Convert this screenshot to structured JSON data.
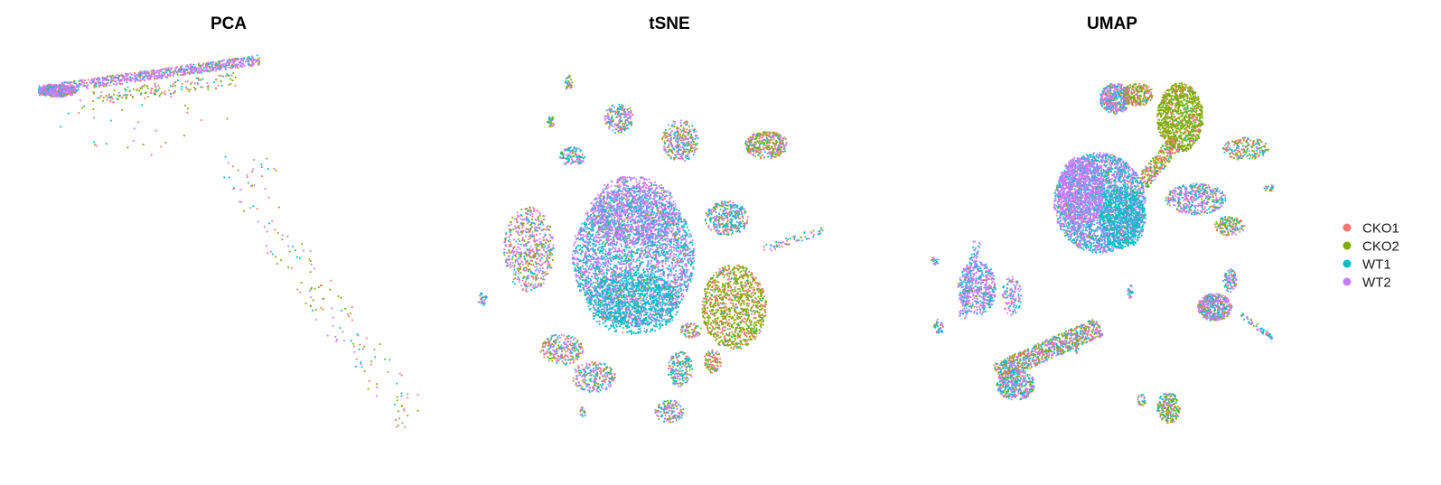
{
  "colors": {
    "CKO1": "#F8766D",
    "CKO2": "#7CAE00",
    "WT1": "#00BFC4",
    "WT2": "#C77CFF"
  },
  "legend": {
    "placement": "right",
    "entries": [
      "CKO1",
      "CKO2",
      "WT1",
      "WT2"
    ]
  },
  "chart_data": [
    {
      "type": "scatter",
      "title": "PCA",
      "xlabel": "",
      "ylabel": "",
      "axes_visible": false,
      "grid": false,
      "xlim": [
        0,
        100
      ],
      "ylim": [
        0,
        100
      ],
      "series_names": [
        "CKO1",
        "CKO2",
        "WT1",
        "WT2"
      ],
      "density_regions": [
        {
          "shape": "band",
          "x1": 1,
          "y1": 91,
          "x2": 58,
          "y2": 99,
          "width": 2.5,
          "n": 900,
          "mix": [
            0.08,
            0.08,
            0.14,
            0.7
          ]
        },
        {
          "shape": "ellipse",
          "cx": 6,
          "cy": 91,
          "rx": 5,
          "ry": 1.6,
          "n": 450,
          "mix": [
            0.06,
            0.06,
            0.18,
            0.7
          ]
        },
        {
          "shape": "band",
          "x1": 15,
          "y1": 89,
          "x2": 52,
          "y2": 94,
          "width": 3.5,
          "n": 160,
          "mix": [
            0.25,
            0.45,
            0.15,
            0.15
          ]
        },
        {
          "shape": "ellipse",
          "cx": 28,
          "cy": 83,
          "rx": 22,
          "ry": 9,
          "n": 35,
          "mix": [
            0.3,
            0.3,
            0.2,
            0.2
          ]
        },
        {
          "shape": "ellipse",
          "cx": 55,
          "cy": 70,
          "rx": 8,
          "ry": 6,
          "n": 25,
          "mix": [
            0.3,
            0.3,
            0.2,
            0.2
          ]
        },
        {
          "shape": "band",
          "x1": 55,
          "y1": 64,
          "x2": 98,
          "y2": 5,
          "width": 10,
          "n": 140,
          "mix": [
            0.3,
            0.35,
            0.15,
            0.2
          ]
        }
      ]
    },
    {
      "type": "scatter",
      "title": "tSNE",
      "xlabel": "",
      "ylabel": "",
      "axes_visible": false,
      "grid": false,
      "xlim": [
        0,
        100
      ],
      "ylim": [
        0,
        100
      ],
      "series_names": [
        "CKO1",
        "CKO2",
        "WT1",
        "WT2"
      ],
      "density_regions": [
        {
          "shape": "ellipse",
          "cx": 44,
          "cy": 48,
          "rx": 17,
          "ry": 18,
          "n": 3600,
          "mix": [
            0.02,
            0.03,
            0.47,
            0.48
          ]
        },
        {
          "shape": "ellipse",
          "cx": 44,
          "cy": 60,
          "rx": 12,
          "ry": 9,
          "n": 900,
          "mix": [
            0.02,
            0.03,
            0.15,
            0.8
          ]
        },
        {
          "shape": "ellipse",
          "cx": 44,
          "cy": 36,
          "rx": 13,
          "ry": 8,
          "n": 800,
          "mix": [
            0.02,
            0.03,
            0.8,
            0.15
          ]
        },
        {
          "shape": "ellipse",
          "cx": 72,
          "cy": 35,
          "rx": 9,
          "ry": 11,
          "n": 1100,
          "mix": [
            0.3,
            0.6,
            0.05,
            0.05
          ]
        },
        {
          "shape": "ellipse",
          "cx": 15,
          "cy": 50,
          "rx": 7,
          "ry": 11,
          "n": 600,
          "mix": [
            0.22,
            0.22,
            0.16,
            0.4
          ]
        },
        {
          "shape": "ellipse",
          "cx": 70,
          "cy": 58,
          "rx": 6,
          "ry": 4.5,
          "n": 350,
          "mix": [
            0.15,
            0.15,
            0.45,
            0.25
          ]
        },
        {
          "shape": "ellipse",
          "cx": 81,
          "cy": 77,
          "rx": 6,
          "ry": 3.5,
          "n": 350,
          "mix": [
            0.2,
            0.45,
            0.1,
            0.25
          ]
        },
        {
          "shape": "ellipse",
          "cx": 57,
          "cy": 78,
          "rx": 5,
          "ry": 5.5,
          "n": 300,
          "mix": [
            0.2,
            0.2,
            0.25,
            0.35
          ]
        },
        {
          "shape": "ellipse",
          "cx": 40,
          "cy": 84,
          "rx": 4,
          "ry": 4,
          "n": 200,
          "mix": [
            0.15,
            0.15,
            0.3,
            0.4
          ]
        },
        {
          "shape": "ellipse",
          "cx": 27,
          "cy": 74,
          "rx": 3.5,
          "ry": 2.5,
          "n": 120,
          "mix": [
            0.1,
            0.1,
            0.4,
            0.4
          ]
        },
        {
          "shape": "ellipse",
          "cx": 24,
          "cy": 24,
          "rx": 6,
          "ry": 4,
          "n": 250,
          "mix": [
            0.2,
            0.2,
            0.2,
            0.4
          ]
        },
        {
          "shape": "ellipse",
          "cx": 33,
          "cy": 17,
          "rx": 6,
          "ry": 4,
          "n": 250,
          "mix": [
            0.15,
            0.15,
            0.25,
            0.45
          ]
        },
        {
          "shape": "ellipse",
          "cx": 57,
          "cy": 19,
          "rx": 3.5,
          "ry": 4.5,
          "n": 180,
          "mix": [
            0.15,
            0.15,
            0.45,
            0.25
          ]
        },
        {
          "shape": "ellipse",
          "cx": 54,
          "cy": 8,
          "rx": 4,
          "ry": 3,
          "n": 140,
          "mix": [
            0.1,
            0.2,
            0.3,
            0.4
          ]
        },
        {
          "shape": "ellipse",
          "cx": 66,
          "cy": 21,
          "rx": 2.5,
          "ry": 3,
          "n": 100,
          "mix": [
            0.4,
            0.4,
            0.1,
            0.1
          ]
        },
        {
          "shape": "ellipse",
          "cx": 60,
          "cy": 29,
          "rx": 3,
          "ry": 2,
          "n": 80,
          "mix": [
            0.3,
            0.4,
            0.1,
            0.2
          ]
        },
        {
          "shape": "ellipse",
          "cx": 26,
          "cy": 93,
          "rx": 1,
          "ry": 2,
          "n": 40,
          "mix": [
            0.1,
            0.3,
            0.3,
            0.3
          ]
        },
        {
          "shape": "ellipse",
          "cx": 21,
          "cy": 83,
          "rx": 1,
          "ry": 1.5,
          "n": 30,
          "mix": [
            0.1,
            0.2,
            0.4,
            0.3
          ]
        },
        {
          "shape": "ellipse",
          "cx": 2,
          "cy": 37,
          "rx": 1.3,
          "ry": 1.8,
          "n": 30,
          "mix": [
            0.1,
            0.1,
            0.4,
            0.4
          ]
        },
        {
          "shape": "ellipse",
          "cx": 30,
          "cy": 8,
          "rx": 0.8,
          "ry": 1.5,
          "n": 20,
          "mix": [
            0.2,
            0.2,
            0.2,
            0.4
          ]
        },
        {
          "shape": "band",
          "x1": 80,
          "y1": 50,
          "x2": 97,
          "y2": 55,
          "width": 2,
          "n": 60,
          "mix": [
            0.15,
            0.15,
            0.4,
            0.3
          ]
        }
      ]
    },
    {
      "type": "scatter",
      "title": "UMAP",
      "xlabel": "",
      "ylabel": "",
      "axes_visible": false,
      "grid": false,
      "xlim": [
        0,
        100
      ],
      "ylim": [
        0,
        100
      ],
      "series_names": [
        "CKO1",
        "CKO2",
        "WT1",
        "WT2"
      ],
      "density_regions": [
        {
          "shape": "ellipse",
          "cx": 47,
          "cy": 62,
          "rx": 12,
          "ry": 13,
          "n": 2800,
          "mix": [
            0.02,
            0.03,
            0.45,
            0.5
          ]
        },
        {
          "shape": "ellipse",
          "cx": 42,
          "cy": 65,
          "rx": 6,
          "ry": 9,
          "n": 900,
          "mix": [
            0.01,
            0.01,
            0.08,
            0.9
          ]
        },
        {
          "shape": "ellipse",
          "cx": 53,
          "cy": 58,
          "rx": 6,
          "ry": 8,
          "n": 700,
          "mix": [
            0.01,
            0.02,
            0.85,
            0.12
          ]
        },
        {
          "shape": "ellipse",
          "cx": 68,
          "cy": 84,
          "rx": 6,
          "ry": 9,
          "n": 1100,
          "mix": [
            0.15,
            0.8,
            0.03,
            0.02
          ]
        },
        {
          "shape": "band",
          "x1": 58,
          "y1": 67,
          "x2": 67,
          "y2": 78,
          "width": 4,
          "n": 300,
          "mix": [
            0.4,
            0.4,
            0.1,
            0.1
          ]
        },
        {
          "shape": "ellipse",
          "cx": 51,
          "cy": 89,
          "rx": 4,
          "ry": 4,
          "n": 450,
          "mix": [
            0.1,
            0.1,
            0.3,
            0.5
          ]
        },
        {
          "shape": "ellipse",
          "cx": 57,
          "cy": 90,
          "rx": 4,
          "ry": 3,
          "n": 250,
          "mix": [
            0.4,
            0.45,
            0.05,
            0.1
          ]
        },
        {
          "shape": "ellipse",
          "cx": 72,
          "cy": 63,
          "rx": 8,
          "ry": 4,
          "n": 450,
          "mix": [
            0.1,
            0.1,
            0.25,
            0.55
          ]
        },
        {
          "shape": "ellipse",
          "cx": 81,
          "cy": 56,
          "rx": 4,
          "ry": 2.5,
          "n": 150,
          "mix": [
            0.2,
            0.35,
            0.2,
            0.25
          ]
        },
        {
          "shape": "ellipse",
          "cx": 85,
          "cy": 76,
          "rx": 6,
          "ry": 3,
          "n": 200,
          "mix": [
            0.3,
            0.3,
            0.25,
            0.15
          ]
        },
        {
          "shape": "ellipse",
          "cx": 15,
          "cy": 40,
          "rx": 5,
          "ry": 7,
          "n": 500,
          "mix": [
            0.02,
            0.03,
            0.3,
            0.65
          ]
        },
        {
          "shape": "band",
          "x1": 11,
          "y1": 32,
          "x2": 15,
          "y2": 52,
          "width": 2,
          "n": 120,
          "mix": [
            0.02,
            0.03,
            0.35,
            0.6
          ]
        },
        {
          "shape": "ellipse",
          "cx": 24,
          "cy": 38,
          "rx": 2.5,
          "ry": 5,
          "n": 120,
          "mix": [
            0.05,
            0.05,
            0.3,
            0.6
          ]
        },
        {
          "shape": "band",
          "x1": 20,
          "y1": 18,
          "x2": 47,
          "y2": 30,
          "width": 5,
          "n": 900,
          "mix": [
            0.18,
            0.25,
            0.25,
            0.32
          ]
        },
        {
          "shape": "ellipse",
          "cx": 25,
          "cy": 15,
          "rx": 5,
          "ry": 4,
          "n": 400,
          "mix": [
            0.1,
            0.15,
            0.35,
            0.4
          ]
        },
        {
          "shape": "ellipse",
          "cx": 77,
          "cy": 35,
          "rx": 4.5,
          "ry": 3.5,
          "n": 500,
          "mix": [
            0.1,
            0.15,
            0.25,
            0.5
          ]
        },
        {
          "shape": "ellipse",
          "cx": 81,
          "cy": 42,
          "rx": 1.8,
          "ry": 3,
          "n": 90,
          "mix": [
            0.1,
            0.1,
            0.4,
            0.4
          ]
        },
        {
          "shape": "band",
          "x1": 84,
          "y1": 33,
          "x2": 92,
          "y2": 27,
          "width": 1.2,
          "n": 60,
          "mix": [
            0.1,
            0.1,
            0.3,
            0.5
          ]
        },
        {
          "shape": "ellipse",
          "cx": 65,
          "cy": 9,
          "rx": 3,
          "ry": 4,
          "n": 220,
          "mix": [
            0.1,
            0.55,
            0.2,
            0.15
          ]
        },
        {
          "shape": "ellipse",
          "cx": 58,
          "cy": 11,
          "rx": 1.2,
          "ry": 1.5,
          "n": 30,
          "mix": [
            0.1,
            0.3,
            0.3,
            0.3
          ]
        },
        {
          "shape": "ellipse",
          "cx": 5,
          "cy": 30,
          "rx": 1.3,
          "ry": 2,
          "n": 40,
          "mix": [
            0.05,
            0.05,
            0.45,
            0.45
          ]
        },
        {
          "shape": "ellipse",
          "cx": 4,
          "cy": 47,
          "rx": 1,
          "ry": 1,
          "n": 20,
          "mix": [
            0.05,
            0.05,
            0.45,
            0.45
          ]
        },
        {
          "shape": "ellipse",
          "cx": 55,
          "cy": 39,
          "rx": 0.7,
          "ry": 1.8,
          "n": 25,
          "mix": [
            0.1,
            0.1,
            0.4,
            0.4
          ]
        },
        {
          "shape": "ellipse",
          "cx": 41,
          "cy": 26,
          "rx": 0.5,
          "ry": 3,
          "n": 25,
          "mix": [
            0.1,
            0.2,
            0.35,
            0.35
          ]
        },
        {
          "shape": "ellipse",
          "cx": 91,
          "cy": 66,
          "rx": 1.5,
          "ry": 1,
          "n": 20,
          "mix": [
            0.2,
            0.2,
            0.3,
            0.3
          ]
        }
      ]
    }
  ]
}
